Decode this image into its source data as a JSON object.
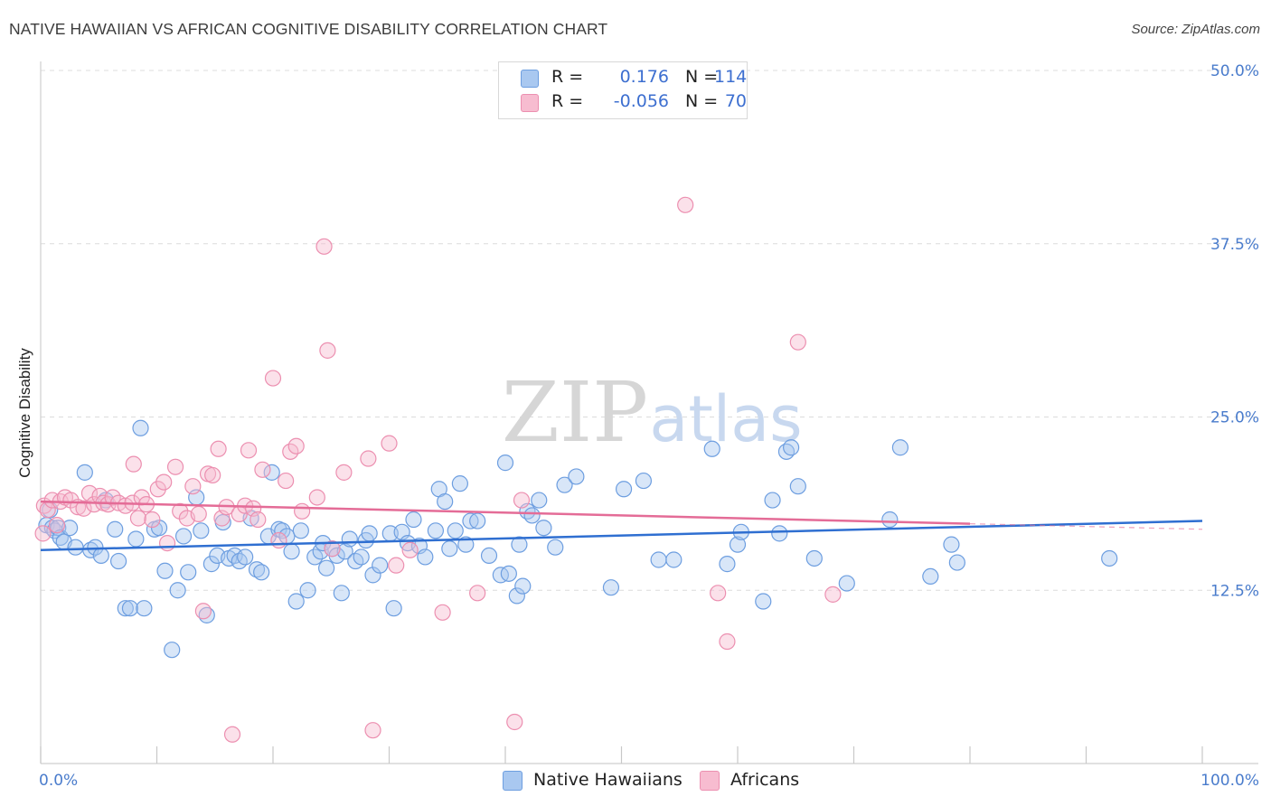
{
  "header": {
    "title": "NATIVE HAWAIIAN VS AFRICAN COGNITIVE DISABILITY CORRELATION CHART",
    "source": "Source: ZipAtlas.com"
  },
  "legend": {
    "rows": [
      {
        "r_label": "R =",
        "r_value": "0.176",
        "n_label": "N =",
        "n_value": "114"
      },
      {
        "r_label": "R =",
        "r_value": "-0.056",
        "n_label": "N =",
        "n_value": "70"
      }
    ],
    "series_labels": [
      "Native Hawaiians",
      "Africans"
    ]
  },
  "colors": {
    "blue_fill": "#a9c8f0",
    "blue_stroke": "#6d9ee0",
    "blue_line": "#2f6fd1",
    "pink_fill": "#f7bcd0",
    "pink_stroke": "#ec8fb0",
    "pink_line": "#e46c97",
    "tick_text": "#4a7ccc",
    "watermark": "#d9d9d9"
  },
  "watermark": {
    "left": "ZIP",
    "right": "atlas"
  },
  "chart_data": {
    "type": "scatter",
    "title": "NATIVE HAWAIIAN VS AFRICAN COGNITIVE DISABILITY CORRELATION CHART",
    "xlabel": "",
    "ylabel": "Cognitive Disability",
    "xlim": [
      0,
      100
    ],
    "ylim": [
      0,
      50
    ],
    "x_ticks": [
      "0.0%",
      "100.0%"
    ],
    "y_ticks": [
      {
        "value": 12.5,
        "label": "12.5%"
      },
      {
        "value": 25.0,
        "label": "25.0%"
      },
      {
        "value": 37.5,
        "label": "37.5%"
      },
      {
        "value": 50.0,
        "label": "50.0%"
      }
    ],
    "series": [
      {
        "name": "Native Hawaiians",
        "r": 0.176,
        "n": 114,
        "trend": {
          "x0": 0,
          "y0": 15.4,
          "x1": 100,
          "y1": 17.5
        },
        "points": [
          [
            0.5,
            17.2
          ],
          [
            0.8,
            18.3
          ],
          [
            1.0,
            17.0
          ],
          [
            1.2,
            16.8
          ],
          [
            1.5,
            17.0
          ],
          [
            1.7,
            16.3
          ],
          [
            2.0,
            16.0
          ],
          [
            2.5,
            17.0
          ],
          [
            3.0,
            15.6
          ],
          [
            3.8,
            21.0
          ],
          [
            4.3,
            15.4
          ],
          [
            4.7,
            15.6
          ],
          [
            5.2,
            15.0
          ],
          [
            5.6,
            19.0
          ],
          [
            6.4,
            16.9
          ],
          [
            6.7,
            14.6
          ],
          [
            7.3,
            11.2
          ],
          [
            7.7,
            11.2
          ],
          [
            8.2,
            16.2
          ],
          [
            8.6,
            24.2
          ],
          [
            8.9,
            11.2
          ],
          [
            9.8,
            16.9
          ],
          [
            10.2,
            17.0
          ],
          [
            10.7,
            13.9
          ],
          [
            11.3,
            8.2
          ],
          [
            11.8,
            12.5
          ],
          [
            12.3,
            16.4
          ],
          [
            12.7,
            13.8
          ],
          [
            13.4,
            19.2
          ],
          [
            13.8,
            16.8
          ],
          [
            14.3,
            10.7
          ],
          [
            14.7,
            14.4
          ],
          [
            15.2,
            15.0
          ],
          [
            15.7,
            17.4
          ],
          [
            16.2,
            14.8
          ],
          [
            16.7,
            15.0
          ],
          [
            17.1,
            14.6
          ],
          [
            17.6,
            14.9
          ],
          [
            18.1,
            17.7
          ],
          [
            18.6,
            14.0
          ],
          [
            19.0,
            13.8
          ],
          [
            19.6,
            16.4
          ],
          [
            19.9,
            21.0
          ],
          [
            20.5,
            16.9
          ],
          [
            20.8,
            16.8
          ],
          [
            21.2,
            16.4
          ],
          [
            21.6,
            15.3
          ],
          [
            22.0,
            11.7
          ],
          [
            22.4,
            16.8
          ],
          [
            23.0,
            12.5
          ],
          [
            23.6,
            14.9
          ],
          [
            24.1,
            15.3
          ],
          [
            24.3,
            15.9
          ],
          [
            24.6,
            14.1
          ],
          [
            25.1,
            15.5
          ],
          [
            25.5,
            15.0
          ],
          [
            25.9,
            12.3
          ],
          [
            26.2,
            15.3
          ],
          [
            26.6,
            16.2
          ],
          [
            27.1,
            14.6
          ],
          [
            27.6,
            14.9
          ],
          [
            28.0,
            16.1
          ],
          [
            28.3,
            16.6
          ],
          [
            28.6,
            13.6
          ],
          [
            29.2,
            14.3
          ],
          [
            30.1,
            16.6
          ],
          [
            30.4,
            11.2
          ],
          [
            31.1,
            16.7
          ],
          [
            31.6,
            15.9
          ],
          [
            32.1,
            17.6
          ],
          [
            32.6,
            15.7
          ],
          [
            33.1,
            14.9
          ],
          [
            34.0,
            16.8
          ],
          [
            34.3,
            19.8
          ],
          [
            34.8,
            18.9
          ],
          [
            35.2,
            15.5
          ],
          [
            35.7,
            16.8
          ],
          [
            36.1,
            20.2
          ],
          [
            36.6,
            15.8
          ],
          [
            37.0,
            17.5
          ],
          [
            37.6,
            17.5
          ],
          [
            38.6,
            15.0
          ],
          [
            39.6,
            13.6
          ],
          [
            40.0,
            21.7
          ],
          [
            40.3,
            13.7
          ],
          [
            41.0,
            12.1
          ],
          [
            41.2,
            15.8
          ],
          [
            41.5,
            12.8
          ],
          [
            41.9,
            18.2
          ],
          [
            42.3,
            17.9
          ],
          [
            42.9,
            19.0
          ],
          [
            43.3,
            17.0
          ],
          [
            44.3,
            15.6
          ],
          [
            45.1,
            20.1
          ],
          [
            46.1,
            20.7
          ],
          [
            49.1,
            12.7
          ],
          [
            50.2,
            19.8
          ],
          [
            51.9,
            20.4
          ],
          [
            53.2,
            14.7
          ],
          [
            54.5,
            14.7
          ],
          [
            57.8,
            22.7
          ],
          [
            59.1,
            14.4
          ],
          [
            60.0,
            15.8
          ],
          [
            60.3,
            16.7
          ],
          [
            62.2,
            11.7
          ],
          [
            63.0,
            19.0
          ],
          [
            63.6,
            16.6
          ],
          [
            64.2,
            22.5
          ],
          [
            64.6,
            22.8
          ],
          [
            65.2,
            20.0
          ],
          [
            66.6,
            14.8
          ],
          [
            69.4,
            13.0
          ],
          [
            73.1,
            17.6
          ],
          [
            74.0,
            22.8
          ],
          [
            76.6,
            13.5
          ],
          [
            78.4,
            15.8
          ],
          [
            78.9,
            14.5
          ],
          [
            92.0,
            14.8
          ]
        ]
      },
      {
        "name": "Africans",
        "r": -0.056,
        "n": 70,
        "trend": {
          "x0": 0,
          "y0": 18.9,
          "x1": 80,
          "y1": 17.3
        },
        "trend_dashed": {
          "x0": 80,
          "y0": 17.3,
          "x1": 100,
          "y1": 16.9
        },
        "points": [
          [
            0.2,
            16.6
          ],
          [
            0.3,
            18.6
          ],
          [
            0.6,
            18.3
          ],
          [
            1.0,
            19.0
          ],
          [
            1.4,
            17.2
          ],
          [
            1.7,
            18.9
          ],
          [
            2.1,
            19.2
          ],
          [
            2.6,
            19.0
          ],
          [
            3.2,
            18.5
          ],
          [
            3.7,
            18.4
          ],
          [
            4.2,
            19.5
          ],
          [
            4.6,
            18.7
          ],
          [
            5.1,
            19.3
          ],
          [
            5.4,
            18.8
          ],
          [
            5.8,
            18.7
          ],
          [
            6.2,
            19.2
          ],
          [
            6.7,
            18.8
          ],
          [
            7.3,
            18.6
          ],
          [
            7.9,
            18.8
          ],
          [
            8.0,
            21.6
          ],
          [
            8.4,
            17.7
          ],
          [
            8.7,
            19.2
          ],
          [
            9.1,
            18.7
          ],
          [
            9.6,
            17.6
          ],
          [
            10.1,
            19.8
          ],
          [
            10.6,
            20.3
          ],
          [
            10.9,
            15.9
          ],
          [
            11.6,
            21.4
          ],
          [
            12.0,
            18.2
          ],
          [
            12.6,
            17.7
          ],
          [
            13.1,
            20.0
          ],
          [
            13.6,
            18.0
          ],
          [
            14.0,
            11.0
          ],
          [
            14.4,
            20.9
          ],
          [
            14.8,
            20.8
          ],
          [
            15.3,
            22.7
          ],
          [
            15.6,
            17.7
          ],
          [
            16.0,
            18.5
          ],
          [
            16.5,
            2.1
          ],
          [
            17.1,
            18.0
          ],
          [
            17.6,
            18.6
          ],
          [
            17.9,
            22.6
          ],
          [
            18.3,
            18.4
          ],
          [
            18.7,
            17.6
          ],
          [
            19.1,
            21.2
          ],
          [
            20.0,
            27.8
          ],
          [
            20.5,
            16.1
          ],
          [
            21.1,
            20.4
          ],
          [
            21.5,
            22.5
          ],
          [
            22.0,
            22.9
          ],
          [
            22.5,
            18.2
          ],
          [
            23.8,
            19.2
          ],
          [
            24.4,
            37.3
          ],
          [
            24.7,
            29.8
          ],
          [
            25.1,
            15.5
          ],
          [
            26.1,
            21.0
          ],
          [
            28.2,
            22.0
          ],
          [
            28.6,
            2.4
          ],
          [
            30.0,
            23.1
          ],
          [
            30.6,
            14.3
          ],
          [
            31.8,
            15.4
          ],
          [
            34.6,
            10.9
          ],
          [
            37.6,
            12.3
          ],
          [
            41.4,
            19.0
          ],
          [
            40.8,
            3.0
          ],
          [
            55.5,
            40.3
          ],
          [
            58.3,
            12.3
          ],
          [
            59.1,
            8.8
          ],
          [
            65.2,
            30.4
          ],
          [
            68.2,
            12.2
          ]
        ]
      }
    ]
  }
}
